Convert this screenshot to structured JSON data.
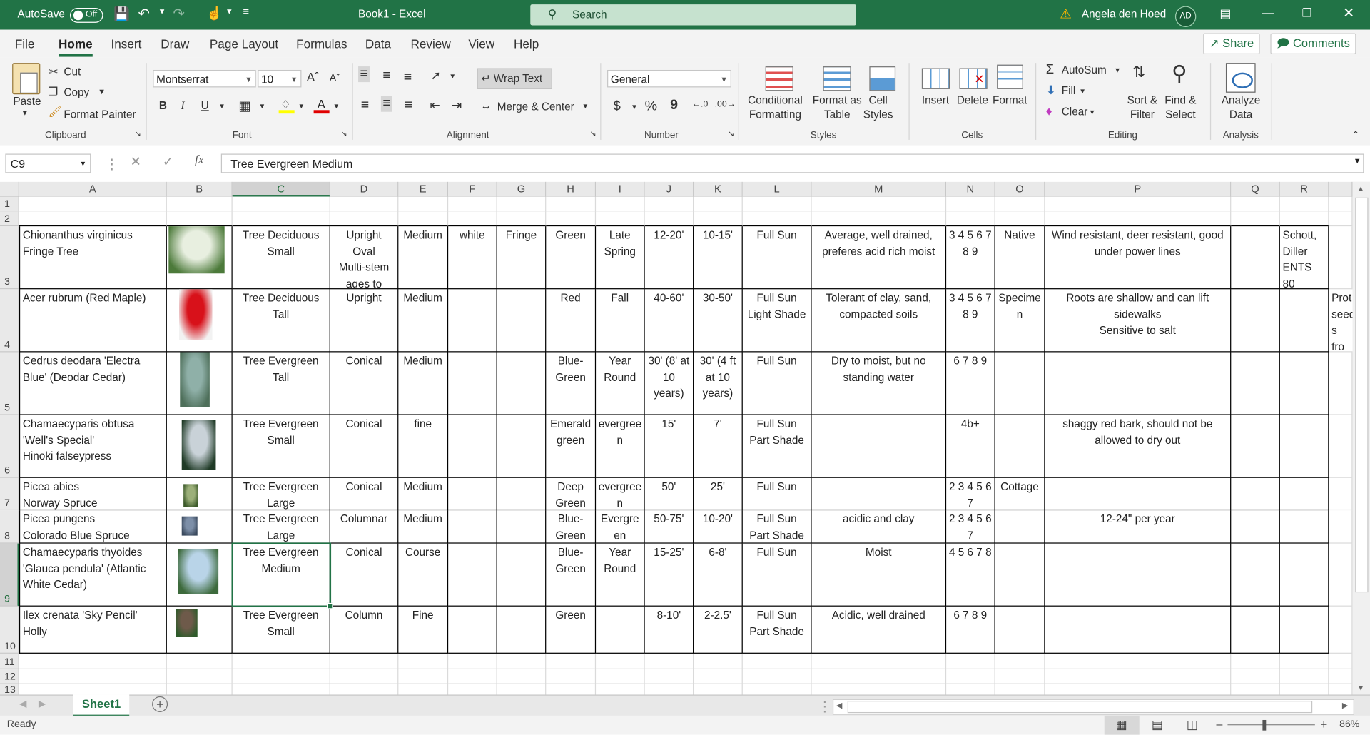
{
  "titlebar": {
    "autosave_label": "AutoSave",
    "autosave_state": "Off",
    "doc_title": "Book1  -  Excel",
    "search_placeholder": "Search",
    "user_name": "Angela den Hoed",
    "user_initials": "AD",
    "accent_color": "#217346"
  },
  "menu": {
    "tabs": [
      "File",
      "Home",
      "Insert",
      "Draw",
      "Page Layout",
      "Formulas",
      "Data",
      "Review",
      "View",
      "Help"
    ],
    "active": "Home",
    "share": "Share",
    "comments": "Comments"
  },
  "ribbon": {
    "clipboard": {
      "paste": "Paste",
      "cut": "Cut",
      "copy": "Copy",
      "format_painter": "Format Painter",
      "label": "Clipboard"
    },
    "font": {
      "name": "Montserrat",
      "size": "10",
      "bold": "B",
      "italic": "I",
      "underline": "U",
      "label": "Font"
    },
    "alignment": {
      "wrap_text": "Wrap Text",
      "merge_center": "Merge & Center",
      "label": "Alignment"
    },
    "number": {
      "format": "General",
      "currency": "$",
      "percent": "%",
      "comma": "9",
      "label": "Number"
    },
    "styles": {
      "conditional": "Conditional\nFormatting",
      "format_table": "Format as\nTable",
      "cell_styles": "Cell\nStyles",
      "label": "Styles"
    },
    "cells": {
      "insert": "Insert",
      "delete": "Delete",
      "format": "Format",
      "label": "Cells"
    },
    "editing": {
      "autosum": "AutoSum",
      "fill": "Fill",
      "clear": "Clear",
      "sort_filter": "Sort &\nFilter",
      "find_select": "Find &\nSelect",
      "label": "Editing"
    },
    "analysis": {
      "analyze_data": "Analyze\nData",
      "label": "Analysis"
    }
  },
  "formula_bar": {
    "name_box": "C9",
    "fx": "fx",
    "content": "Tree Evergreen Medium"
  },
  "grid": {
    "columns": [
      "A",
      "B",
      "C",
      "D",
      "E",
      "F",
      "G",
      "H",
      "I",
      "J",
      "K",
      "L",
      "M",
      "N",
      "O",
      "P",
      "Q",
      "R"
    ],
    "row_numbers": [
      "1",
      "2",
      "3",
      "4",
      "5",
      "6",
      "7",
      "8",
      "9",
      "10",
      "11",
      "12",
      "13"
    ],
    "selected_cell": "C9",
    "rows": [
      {
        "cells": [
          "Chionanthus virginicus\nFringe Tree",
          "",
          "Tree Deciduous\nSmall",
          "Upright\nOval\nMulti-stem\nages to",
          "Medium",
          "white",
          "Fringe",
          "Green",
          "Late\nSpring",
          "12-20'",
          "10-15'",
          "Full Sun",
          "Average, well drained,\npreferes acid rich moist",
          "3 4 5 6 7\n8 9",
          "Native",
          "Wind resistant, deer resistant, good\nunder power lines",
          "",
          "Schott,\nDiller\nENTS 80",
          ""
        ],
        "image": "fringe-tree-photo",
        "image_colors": [
          "#e8efe0",
          "#4c7a3a"
        ]
      },
      {
        "cells": [
          "Acer rubrum (Red Maple)",
          "",
          "Tree Deciduous\nTall",
          "Upright",
          "Medium",
          "",
          "",
          "Red",
          "Fall",
          "40-60'",
          "30-50'",
          "Full Sun\nLight Shade",
          "Tolerant of clay, sand,\ncompacted soils",
          "3 4 5 6 7\n8 9",
          "Specime\nn",
          "Roots are shallow and can lift\nsidewalks\nSensitive to salt",
          "",
          "",
          "Prot\nseed\ns fro\ndeer"
        ],
        "image": "red-maple-photo",
        "image_colors": [
          "#d8111a",
          "#f2f2f2"
        ]
      },
      {
        "cells": [
          "Cedrus deodara 'Electra\nBlue' (Deodar Cedar)",
          "",
          "Tree Evergreen\nTall",
          "Conical",
          "Medium",
          "",
          "",
          "Blue-\nGreen",
          "Year\nRound",
          "30' (8' at\n10 years)",
          "30' (4 ft\nat 10\nyears)",
          "Full Sun",
          "Dry to moist, but no\nstanding water",
          "6 7 8 9",
          "",
          "",
          "",
          "",
          ""
        ],
        "image": "deodar-cedar-photo",
        "image_colors": [
          "#8fb0a8",
          "#4e6f5a"
        ]
      },
      {
        "cells": [
          "Chamaecyparis obtusa\n'Well's Special'\nHinoki falseypress",
          "",
          "Tree Evergreen\nSmall",
          "Conical",
          "fine",
          "",
          "",
          "Emerald\ngreen",
          "evergree\nn",
          "15'",
          "7'",
          "Full Sun\nPart Shade",
          "",
          "4b+",
          "",
          "shaggy red bark, should not be\nallowed to dry out",
          "",
          "",
          ""
        ],
        "image": "hinoki-photo",
        "image_colors": [
          "#c9d2d8",
          "#1f3a26"
        ]
      },
      {
        "cells": [
          "Picea abies\nNorway Spruce",
          "",
          "Tree Evergreen\nLarge",
          "Conical",
          "Medium",
          "",
          "",
          "Deep\nGreen",
          "evergree\nn",
          "50'",
          "25'",
          "Full Sun",
          "",
          "2 3 4 5 6\n7",
          "Cottage",
          "",
          "",
          "",
          ""
        ],
        "image": "norway-spruce-photo",
        "image_colors": [
          "#9cb07a",
          "#3c5a2a"
        ]
      },
      {
        "cells": [
          "Picea pungens\nColorado Blue Spruce",
          "",
          "Tree Evergreen\nLarge",
          "Columnar",
          "Medium",
          "",
          "",
          "Blue-\nGreen",
          "Evergre\nen",
          "50-75'",
          "10-20'",
          "Full Sun\nPart Shade",
          "acidic and clay",
          "2 3 4 5 6\n7",
          "",
          "12-24\" per year",
          "",
          "",
          ""
        ],
        "image": "blue-spruce-photo",
        "image_colors": [
          "#7d8fa8",
          "#3b4a5e"
        ]
      },
      {
        "cells": [
          "Chamaecyparis thyoides\n'Glauca pendula' (Atlantic\nWhite Cedar)",
          "",
          "Tree Evergreen\nMedium",
          "Conical",
          "Course",
          "",
          "",
          "Blue-\nGreen",
          "Year\nRound",
          "15-25'",
          "6-8'",
          "Full Sun",
          "Moist",
          "4 5 6 7 8",
          "",
          "",
          "",
          "",
          ""
        ],
        "image": "white-cedar-photo",
        "image_colors": [
          "#b9d4e8",
          "#3d6a3c"
        ]
      },
      {
        "cells": [
          "Ilex crenata 'Sky Pencil'\nHolly",
          "",
          "Tree Evergreen\nSmall",
          "Column",
          "Fine",
          "",
          "",
          "Green",
          "",
          "8-10'",
          "2-2.5'",
          "Full Sun\nPart Shade",
          "Acidic, well drained",
          "6 7 8 9",
          "",
          "",
          "",
          "",
          ""
        ],
        "image": "sky-pencil-holly-photo",
        "image_colors": [
          "#6e5a4a",
          "#2e5a2a"
        ]
      }
    ]
  },
  "sheets": {
    "tabs": [
      "Sheet1"
    ],
    "active": "Sheet1"
  },
  "status": {
    "ready": "Ready",
    "zoom": "86%",
    "zoom_level_percent": 86
  }
}
